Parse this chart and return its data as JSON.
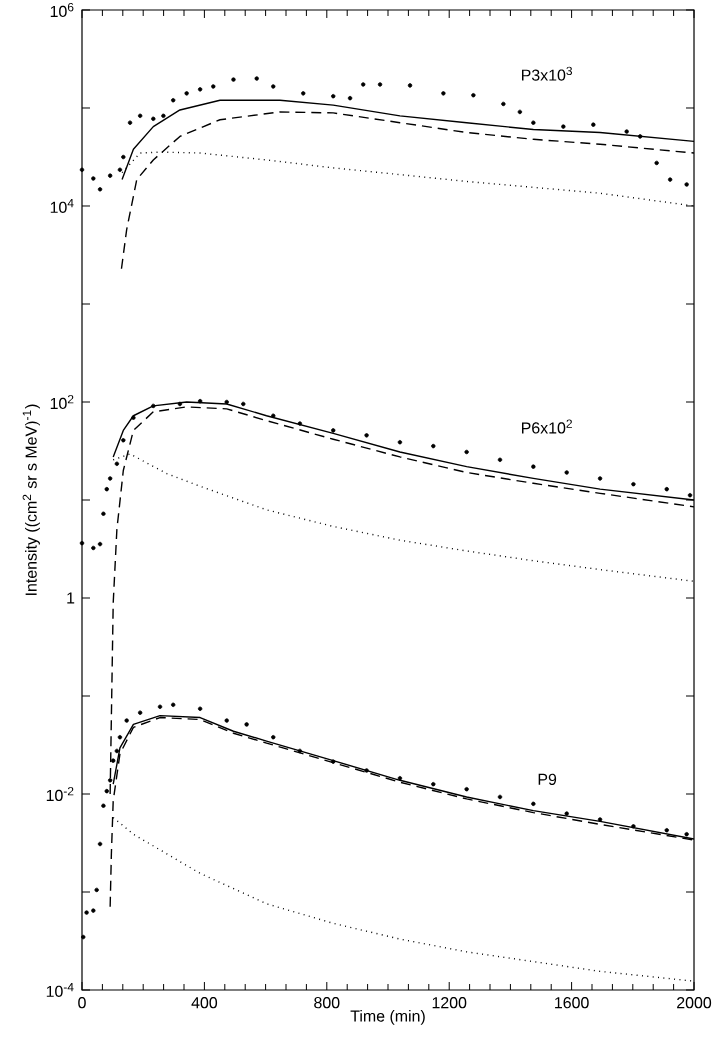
{
  "chart_data": {
    "type": "line",
    "xlabel": "Time (min)",
    "ylabel": "Intensity ((cm$^{2}$ sr s MeV)$^{-1}$)",
    "log": "y",
    "xlim": [
      0,
      2000
    ],
    "ylim": [
      0.0001,
      1000000.0
    ],
    "xticks": [
      0,
      400,
      800,
      1200,
      1600,
      2000
    ],
    "yticks": [
      {
        "value": 1000000.0,
        "label": "10$^{6}$"
      },
      {
        "value": 100000.0,
        "label": null
      },
      {
        "value": 10000.0,
        "label": "10$^{4}$"
      },
      {
        "value": 1000.0,
        "label": null
      },
      {
        "value": 100,
        "label": "10$^{2}$"
      },
      {
        "value": 10,
        "label": null
      },
      {
        "value": 1,
        "label": "1"
      },
      {
        "value": 0.1,
        "label": null
      },
      {
        "value": 0.01,
        "label": "10$^{-2}$"
      },
      {
        "value": 0.001,
        "label": null
      },
      {
        "value": 0.0001,
        "label": "10$^{-4}$"
      }
    ],
    "annotations": [
      "P3x10$^{3}$",
      "P6x10$^{2}$",
      "P9"
    ],
    "series": [
      {
        "type": "scatter",
        "marker": "circle",
        "color": "#000000",
        "x": [
          0,
          37,
          59,
          92,
          124,
          135,
          157,
          190,
          233,
          266,
          298,
          342,
          386,
          429,
          495,
          571,
          625,
          723,
          821,
          876,
          919,
          974,
          1072,
          1181,
          1279,
          1377,
          1431,
          1475,
          1573,
          1671,
          1780,
          1824,
          1878,
          1922,
          1976
        ],
        "values": [
          23400.0,
          19100.0,
          14800.0,
          20400.0,
          23400.0,
          31600.0,
          70800.0,
          83200.0,
          77600.0,
          83200.0,
          120000.0,
          141000.0,
          155000.0,
          166000.0,
          195000.0,
          200000.0,
          166000.0,
          141000.0,
          132000.0,
          126000.0,
          174000.0,
          174000.0,
          170000.0,
          141000.0,
          135000.0,
          110000.0,
          91200.0,
          70800.0,
          64600.0,
          67600.0,
          57500.0,
          51300.0,
          27500.0,
          18600.0,
          16600.0
        ]
      },
      {
        "line_style": "solid",
        "color": "#000000",
        "x": [
          131,
          168,
          233,
          320,
          451,
          647,
          821,
          1039,
          1257,
          1475,
          1693,
          2000
        ],
        "values": [
          18600.0,
          38000.0,
          64600.0,
          95500.0,
          120000.0,
          120000.0,
          107000.0,
          83200.0,
          70800.0,
          60300.0,
          56200.0,
          45700.0
        ]
      },
      {
        "line_style": "dashed",
        "color": "#000000",
        "x": [
          129,
          146,
          179,
          233,
          320,
          451,
          647,
          821,
          1039,
          1257,
          1475,
          1693,
          2000
        ],
        "values": [
          2290.0,
          5750.0,
          18600.0,
          29500.0,
          51300.0,
          75900.0,
          91200.0,
          89100.0,
          70800.0,
          56200.0,
          47900.0,
          42700.0,
          34700.0
        ]
      },
      {
        "line_style": "dotted",
        "color": "#000000",
        "x": [
          131,
          190,
          255,
          386,
          603,
          821,
          1039,
          1257,
          1475,
          1693,
          2000
        ],
        "values": [
          21900.0,
          34700.0,
          35500.0,
          34700.0,
          29500.0,
          24500.0,
          20900.0,
          17800.0,
          15500.0,
          13500.0,
          10000.0
        ]
      },
      {
        "type": "scatter",
        "marker": "circle",
        "color": "#000000",
        "x": [
          0,
          37,
          59,
          70,
          81,
          92,
          114,
          135,
          168,
          233,
          320,
          386,
          473,
          527,
          625,
          712,
          821,
          930,
          1039,
          1148,
          1257,
          1366,
          1475,
          1584,
          1693,
          1802,
          1911,
          1987
        ],
        "values": [
          3.63,
          3.24,
          3.55,
          7.24,
          12.9,
          16.6,
          23.4,
          40.7,
          69.2,
          91.2,
          95.5,
          102,
          100,
          95.5,
          72.4,
          60.3,
          51.3,
          45.7,
          38.9,
          35.5,
          30.9,
          25.7,
          21.9,
          19.1,
          16.6,
          14.5,
          12.9,
          11.2
        ]
      },
      {
        "line_style": "solid",
        "color": "#000000",
        "x": [
          102,
          135,
          168,
          233,
          342,
          473,
          603,
          821,
          1039,
          1257,
          1475,
          1693,
          2000
        ],
        "values": [
          27.5,
          51.3,
          72.4,
          91.2,
          100,
          95.5,
          72.4,
          47.9,
          30.9,
          21.9,
          16.6,
          12.9,
          10
        ]
      },
      {
        "line_style": "dashed",
        "color": "#000000",
        "x": [
          92,
          102,
          114,
          135,
          168,
          233,
          342,
          473,
          603,
          821,
          1039,
          1257,
          1475,
          1693,
          2000
        ],
        "values": [
          0.01,
          0.89,
          5.01,
          20.0,
          51.3,
          79.4,
          89.1,
          85.1,
          64.6,
          41.7,
          27.5,
          19.1,
          14.8,
          11.7,
          8.51
        ]
      },
      {
        "line_style": "dotted",
        "color": "#000000",
        "x": [
          102,
          157,
          277,
          386,
          603,
          821,
          1039,
          1257,
          1475,
          1693,
          2000
        ],
        "values": [
          25.7,
          29.5,
          18.6,
          13.8,
          7.94,
          5.37,
          3.89,
          3.02,
          2.4,
          1.95,
          1.48
        ]
      },
      {
        "type": "scatter",
        "marker": "circle",
        "color": "#000000",
        "x": [
          4,
          15,
          37,
          48,
          59,
          70,
          81,
          92,
          102,
          114,
          124,
          146,
          190,
          255,
          298,
          386,
          473,
          538,
          625,
          712,
          821,
          930,
          1039,
          1148,
          1257,
          1366,
          1475,
          1584,
          1693,
          1802,
          1911,
          1976
        ],
        "values": [
          0.000347,
          0.000617,
          0.000646,
          0.00105,
          0.00309,
          0.00759,
          0.0107,
          0.0138,
          0.0219,
          0.0275,
          0.038,
          0.0562,
          0.0676,
          0.0776,
          0.0813,
          0.0741,
          0.0562,
          0.0513,
          0.038,
          0.0275,
          0.0214,
          0.0174,
          0.0145,
          0.0126,
          0.0112,
          0.00933,
          0.00794,
          0.00631,
          0.0055,
          0.00468,
          0.00427,
          0.00389
        ]
      },
      {
        "line_style": "solid",
        "color": "#000000",
        "x": [
          102,
          124,
          168,
          255,
          386,
          495,
          603,
          821,
          1039,
          1257,
          1475,
          1693,
          2000
        ],
        "values": [
          0.0126,
          0.0295,
          0.0513,
          0.0631,
          0.0603,
          0.0437,
          0.0347,
          0.0219,
          0.0138,
          0.00933,
          0.00676,
          0.00525,
          0.00347
        ]
      },
      {
        "line_style": "dashed",
        "color": "#000000",
        "x": [
          92,
          96,
          102,
          124,
          168,
          255,
          386,
          495,
          603,
          821,
          1039,
          1257,
          1475,
          1693,
          2000
        ],
        "values": [
          0.000708,
          0.00245,
          0.00851,
          0.0257,
          0.0479,
          0.0603,
          0.0575,
          0.0417,
          0.0331,
          0.0209,
          0.0132,
          0.00891,
          0.00646,
          0.0049,
          0.00339
        ]
      },
      {
        "line_style": "dotted",
        "color": "#000000",
        "x": [
          102,
          168,
          277,
          386,
          603,
          821,
          1039,
          1257,
          1475,
          1693,
          2000
        ],
        "values": [
          0.00575,
          0.00389,
          0.00245,
          0.00155,
          0.000759,
          0.000479,
          0.000331,
          0.000245,
          0.000195,
          0.000155,
          0.000123
        ]
      }
    ]
  }
}
